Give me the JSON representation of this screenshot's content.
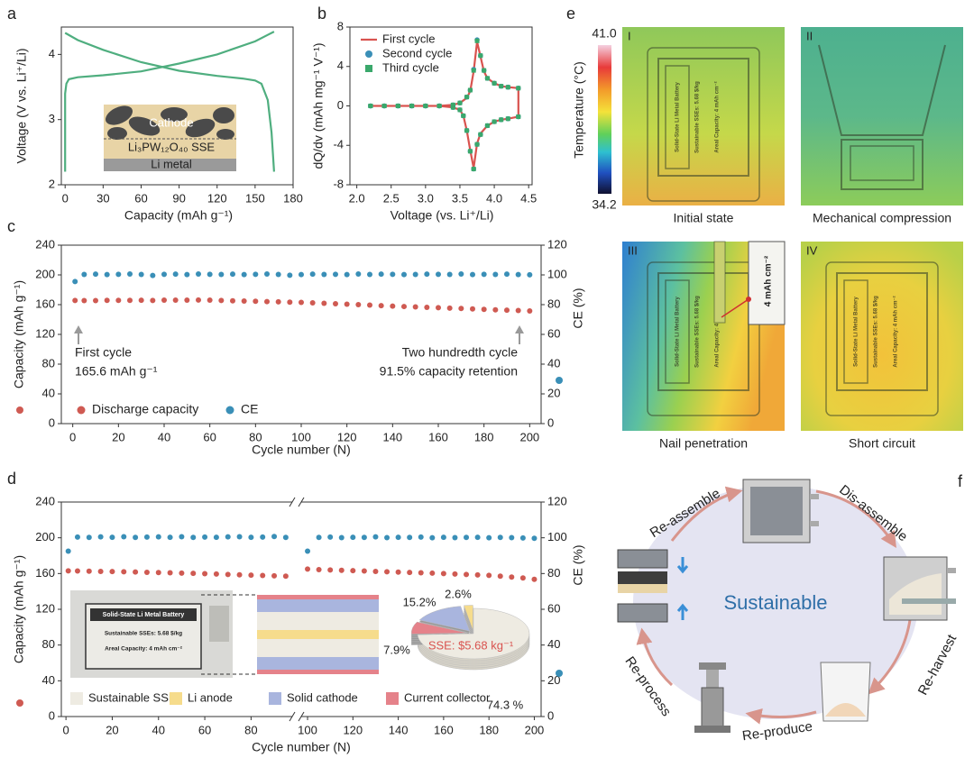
{
  "chart_data": [
    {
      "panel": "a",
      "type": "line",
      "xlabel": "Capacity (mAh g⁻¹)",
      "ylabel": "Voltage (V vs. Li⁺/Li)",
      "xlim": [
        -3,
        180
      ],
      "xticks": [
        0,
        30,
        60,
        90,
        120,
        150,
        180
      ],
      "ylim": [
        2,
        4.42
      ],
      "yticks": [
        2,
        3,
        4
      ],
      "series": [
        {
          "color": "#4fae7f",
          "marker": "line",
          "x": [
            0,
            0,
            1,
            3,
            10,
            30,
            60,
            90,
            120,
            150,
            160,
            165
          ],
          "values": [
            2.2,
            3.4,
            3.55,
            3.62,
            3.65,
            3.68,
            3.74,
            3.86,
            4.0,
            4.2,
            4.3,
            4.35
          ]
        },
        {
          "color": "#4fae7f",
          "marker": "line",
          "x": [
            0,
            10,
            30,
            60,
            90,
            120,
            140,
            150,
            155,
            160,
            163,
            165
          ],
          "values": [
            4.33,
            4.22,
            4.07,
            3.88,
            3.75,
            3.67,
            3.63,
            3.6,
            3.55,
            3.3,
            2.8,
            2.2
          ]
        }
      ],
      "annotations": [
        "Cathode",
        "Li₃PW₁₂O₄₀ SSE",
        "Li metal"
      ]
    },
    {
      "panel": "b",
      "type": "line",
      "xlabel": "Voltage (vs. Li⁺/Li)",
      "ylabel": "dQ/dv (mAh mg⁻¹ V⁻¹)",
      "xlim": [
        1.9,
        4.55
      ],
      "xticks": [
        {
          "value": 2,
          "label": "2.0"
        },
        2.5,
        {
          "value": 3,
          "label": "3.0"
        },
        3.5,
        {
          "value": 4,
          "label": "4.0"
        },
        4.5
      ],
      "ylim": [
        -8,
        8
      ],
      "yticks": [
        -8,
        -4,
        0,
        4,
        8
      ],
      "legend": "upper left",
      "x": [
        2.2,
        2.4,
        2.6,
        2.8,
        3.0,
        3.2,
        3.4,
        3.5,
        3.6,
        3.65,
        3.7,
        3.75,
        3.8,
        3.85,
        3.9,
        4.0,
        4.1,
        4.2,
        4.35,
        4.35,
        4.2,
        4.1,
        4.0,
        3.9,
        3.8,
        3.75,
        3.7,
        3.65,
        3.6,
        3.55,
        3.5,
        3.4,
        3.2,
        3.0,
        2.8,
        2.6,
        2.4,
        2.2
      ],
      "series": [
        {
          "name": "First cycle",
          "color": "#d9534f",
          "marker": "line",
          "values": [
            0,
            0,
            0,
            0,
            0,
            0,
            0.1,
            0.3,
            0.8,
            1.5,
            3.5,
            6.5,
            5,
            3.5,
            2.8,
            2.3,
            2,
            1.9,
            1.8,
            -1.1,
            -1.3,
            -1.4,
            -1.6,
            -2,
            -2.8,
            -3.8,
            -6.3,
            -4.5,
            -2.5,
            -1,
            -0.4,
            -0.15,
            0,
            0,
            0,
            0,
            0,
            0
          ]
        },
        {
          "name": "Second cycle",
          "color": "#3a8fb7",
          "marker": "circle",
          "values": [
            0,
            0,
            0,
            0,
            0,
            0,
            0.1,
            0.3,
            0.9,
            1.6,
            3.7,
            6.7,
            5.1,
            3.6,
            2.8,
            2.3,
            2,
            1.9,
            1.8,
            -1.1,
            -1.3,
            -1.4,
            -1.6,
            -2,
            -2.9,
            -3.9,
            -6.4,
            -4.6,
            -2.5,
            -1,
            -0.4,
            -0.15,
            0,
            0,
            0,
            0,
            0,
            0
          ]
        },
        {
          "name": "Third cycle",
          "color": "#3aa86b",
          "marker": "square",
          "values": [
            0,
            0,
            0,
            0,
            0,
            0,
            0.1,
            0.3,
            0.9,
            1.6,
            3.6,
            6.6,
            5.1,
            3.6,
            2.8,
            2.3,
            2,
            1.9,
            1.8,
            -1.1,
            -1.3,
            -1.4,
            -1.6,
            -2,
            -2.9,
            -3.9,
            -6.4,
            -4.6,
            -2.5,
            -1,
            -0.4,
            -0.15,
            0,
            0,
            0,
            0,
            0,
            0
          ]
        }
      ]
    },
    {
      "panel": "c",
      "type": "scatter",
      "xlabel": "Cycle number (N)",
      "ylabel": "Capacity (mAh g⁻¹)",
      "y2label": "CE (%)",
      "xlim": [
        -5,
        205
      ],
      "xticks": [
        0,
        20,
        40,
        60,
        80,
        100,
        120,
        140,
        160,
        180,
        200
      ],
      "ylim": [
        0,
        240
      ],
      "yticks": [
        0,
        40,
        80,
        120,
        160,
        200,
        240
      ],
      "y2lim": [
        0,
        120
      ],
      "y2ticks": [
        0,
        20,
        40,
        60,
        80,
        100,
        120
      ],
      "legend": "lower left",
      "x": [
        1,
        5,
        10,
        15,
        20,
        25,
        30,
        35,
        40,
        45,
        50,
        55,
        60,
        65,
        70,
        75,
        80,
        85,
        90,
        95,
        100,
        105,
        110,
        115,
        120,
        125,
        130,
        135,
        140,
        145,
        150,
        155,
        160,
        165,
        170,
        175,
        180,
        185,
        190,
        195,
        200
      ],
      "series": [
        {
          "name": "Discharge capacity",
          "color": "#cf5a52",
          "marker": "circle",
          "values": [
            165.6,
            165.4,
            165.5,
            165.7,
            165.8,
            165.8,
            165.9,
            165.6,
            166,
            166.1,
            166,
            166.2,
            166,
            165.6,
            165.2,
            164.8,
            164.5,
            164.1,
            163.8,
            163.4,
            163,
            162.4,
            161.8,
            161.2,
            160.6,
            160,
            159.4,
            158.7,
            158,
            157.5,
            157,
            156.4,
            155.9,
            155.3,
            154.8,
            154.3,
            153.6,
            153.1,
            152.6,
            152.1,
            151.5
          ]
        },
        {
          "name": "CE",
          "color": "#3a8fb7",
          "marker": "circle",
          "axis": "y2",
          "values": [
            95.5,
            100.3,
            100.5,
            100.2,
            100.4,
            100.6,
            100.3,
            99.6,
            100.4,
            100.5,
            100.2,
            100.6,
            100.4,
            100.3,
            100.5,
            100.2,
            100.4,
            100.6,
            100.3,
            99.8,
            100.2,
            100.5,
            100.3,
            100.4,
            100.2,
            100.6,
            100.3,
            100.5,
            100.4,
            100.2,
            100.3,
            100.5,
            100.4,
            100.3,
            100.6,
            100.2,
            100.4,
            100.3,
            100.5,
            100.2,
            100.1
          ]
        }
      ],
      "annotations": [
        "First cycle",
        "165.6 mAh g⁻¹",
        "Two hundredth cycle",
        "91.5% capacity retention"
      ]
    },
    {
      "panel": "d",
      "type": "scatter",
      "xlabel": "Cycle number (N)",
      "ylabel": "Capacity (mAh g⁻¹)",
      "y2label": "CE (%)",
      "xsegments": [
        [
          -2,
          97
        ],
        [
          98,
          203
        ]
      ],
      "xticks": [
        0,
        20,
        40,
        60,
        80,
        100,
        120,
        140,
        160,
        180,
        200
      ],
      "ylim": [
        0,
        240
      ],
      "yticks": [
        0,
        40,
        80,
        120,
        160,
        200,
        240
      ],
      "y2lim": [
        0,
        120
      ],
      "y2ticks": [
        0,
        20,
        40,
        60,
        80,
        100,
        120
      ],
      "x": [
        1,
        5,
        10,
        15,
        20,
        25,
        30,
        35,
        40,
        45,
        50,
        55,
        60,
        65,
        70,
        75,
        80,
        85,
        90,
        95,
        100,
        105,
        110,
        115,
        120,
        125,
        130,
        135,
        140,
        145,
        150,
        155,
        160,
        165,
        170,
        175,
        180,
        185,
        190,
        195,
        200
      ],
      "series": [
        {
          "color": "#cf5a52",
          "marker": "circle",
          "values": [
            163,
            162.8,
            162.6,
            162.4,
            162.2,
            162,
            161.7,
            161.4,
            161.1,
            160.8,
            160.5,
            160.2,
            159.8,
            159.4,
            159,
            158.6,
            158.2,
            157.8,
            157.4,
            157,
            165,
            164.4,
            164,
            163.6,
            163.2,
            162.8,
            162.4,
            162,
            161.6,
            161.2,
            160.8,
            160.4,
            160,
            159.5,
            159,
            158.5,
            158,
            157,
            156,
            155,
            153.5
          ]
        },
        {
          "color": "#3a8fb7",
          "marker": "circle",
          "axis": "y2",
          "values": [
            92.5,
            100.4,
            100.2,
            100.5,
            100.3,
            100.6,
            100.2,
            100.4,
            100.5,
            100.3,
            100.6,
            100.2,
            100.4,
            100.3,
            100.5,
            100.6,
            100.3,
            100.4,
            100.7,
            100.2,
            92.5,
            100.2,
            100.4,
            100.1,
            100.3,
            100.2,
            100.5,
            100.1,
            100.3,
            100.2,
            100.4,
            100,
            100.3,
            100.1,
            100.2,
            100.3,
            100,
            100.2,
            100.1,
            99.9,
            99.7
          ]
        }
      ],
      "inset_text": [
        "Solid-State Li Metal Battery",
        "Sustainable SSEs: 5.68 $/kg",
        "Areal Capacity: 4 mAh cm⁻²"
      ]
    },
    {
      "type": "pie",
      "categories": [
        "Sustainable SSE",
        "Li anode",
        "Solid cathode",
        "Current collector"
      ],
      "values": [
        74.3,
        2.6,
        15.2,
        7.9
      ],
      "value_labels": [
        "74.3 %",
        "2.6%",
        "15.2%",
        "7.9%"
      ],
      "colors": [
        "#eeebe2",
        "#f6dc8c",
        "#a9b5de",
        "#e5828a"
      ],
      "annotation": "SSE: $5.68 kg⁻¹"
    }
  ],
  "thermal": {
    "panel": "e",
    "colorbar": {
      "label": "Temperature (°C)",
      "max": {
        "value": 41.0,
        "label": "41.0"
      },
      "min": {
        "value": 34.2,
        "label": "34.2"
      }
    },
    "images": [
      {
        "id": "I",
        "caption": "Initial state"
      },
      {
        "id": "II",
        "caption": "Mechanical compression"
      },
      {
        "id": "III",
        "caption": "Nail penetration"
      },
      {
        "id": "IV",
        "caption": "Short circuit"
      }
    ],
    "zoom_label": "4 mAh cm⁻²"
  },
  "cycle": {
    "panel": "f",
    "center": "Sustainable",
    "steps": [
      "Re-assemble",
      "Dis-assemble",
      "Re-harvest",
      "Re-produce",
      "Re-process"
    ]
  }
}
